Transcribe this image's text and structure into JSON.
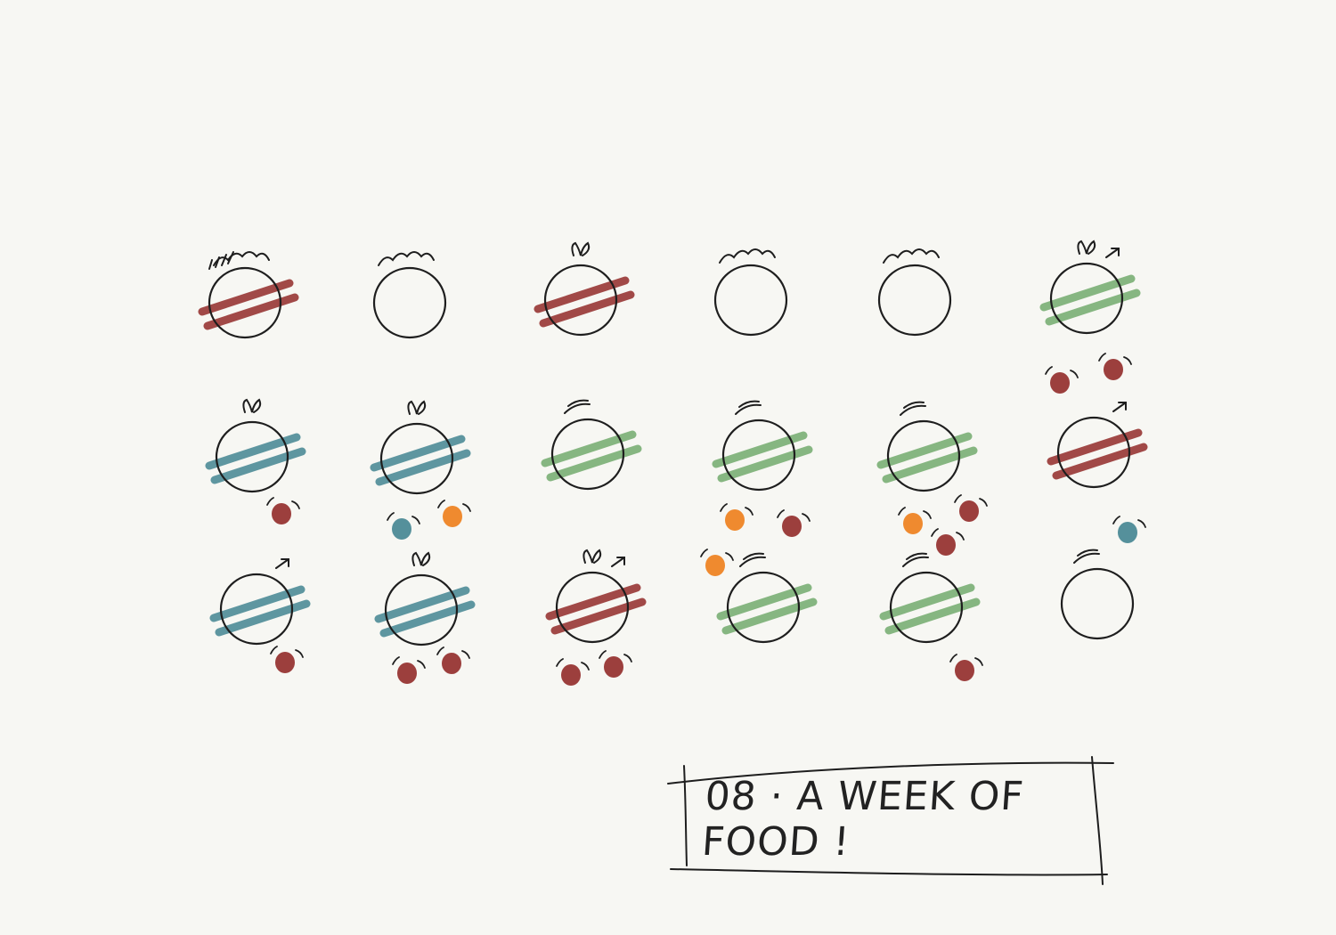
{
  "title": "08 · A WEEK OF FOOD !",
  "colors": {
    "ink": "#1e1e1e",
    "red": "#9c3f3d",
    "green": "#7fb27a",
    "teal": "#55909b",
    "orange": "#ef8a2f",
    "paper": "#f7f7f3"
  },
  "plates": [
    {
      "stripe": "red",
      "top": "scribble-wave"
    },
    {
      "stripe": "none",
      "top": "wave"
    },
    {
      "stripe": "red",
      "top": "sprout"
    },
    {
      "stripe": "none",
      "top": "wave"
    },
    {
      "stripe": "none",
      "top": "wave"
    },
    {
      "stripe": "green",
      "top": "sprout-arrow"
    },
    {
      "stripe": "teal",
      "top": "sprout"
    },
    {
      "stripe": "teal",
      "top": "sprout"
    },
    {
      "stripe": "green",
      "top": "arc"
    },
    {
      "stripe": "green",
      "top": "arc"
    },
    {
      "stripe": "green",
      "top": "arc"
    },
    {
      "stripe": "red",
      "top": "arrow"
    },
    {
      "stripe": "teal",
      "top": "arrow"
    },
    {
      "stripe": "teal",
      "top": "sprout"
    },
    {
      "stripe": "red",
      "top": "sprout-arrow"
    },
    {
      "stripe": "green",
      "top": "arc"
    },
    {
      "stripe": "green",
      "top": "arc"
    },
    {
      "stripe": "none",
      "top": "arc"
    }
  ],
  "dots": [
    {
      "color": "red"
    },
    {
      "color": "red"
    },
    {
      "color": "red"
    },
    {
      "color": "teal"
    },
    {
      "color": "orange"
    },
    {
      "color": "orange"
    },
    {
      "color": "red"
    },
    {
      "color": "orange"
    },
    {
      "color": "red"
    },
    {
      "color": "red"
    },
    {
      "color": "teal"
    },
    {
      "color": "red"
    },
    {
      "color": "red"
    },
    {
      "color": "red"
    },
    {
      "color": "red"
    },
    {
      "color": "red"
    },
    {
      "color": "orange"
    },
    {
      "color": "red"
    }
  ]
}
